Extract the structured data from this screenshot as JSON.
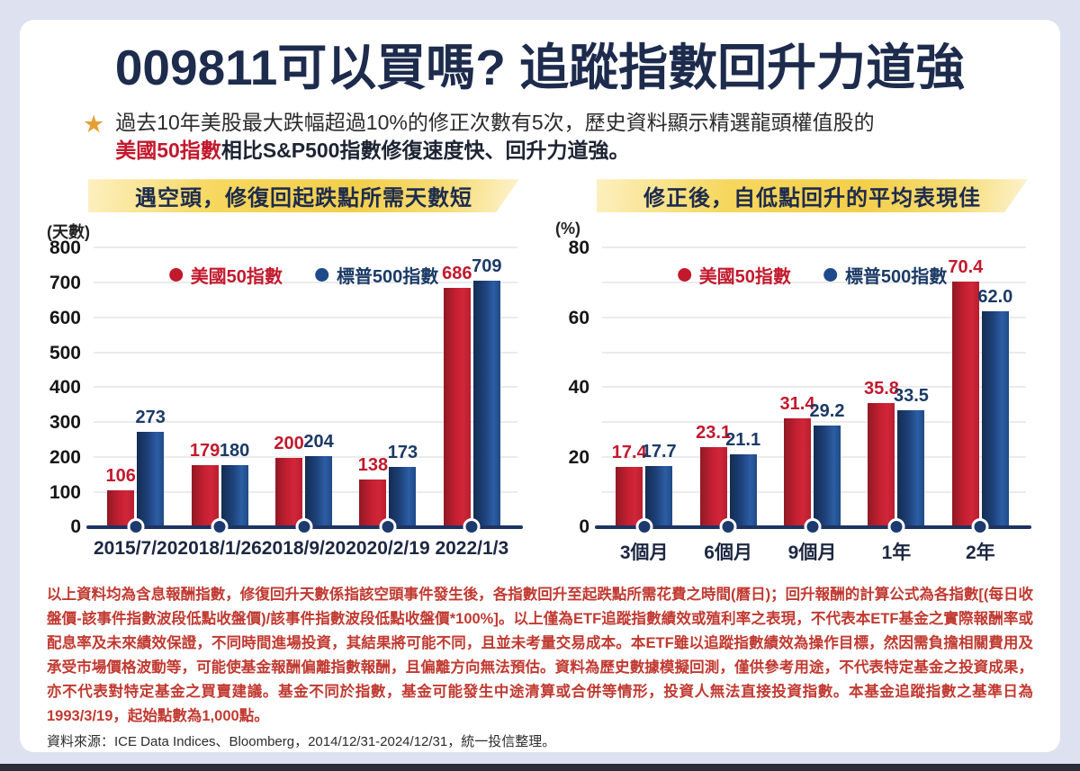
{
  "header": {
    "title": "009811可以買嗎? 追蹤指數回升力道強"
  },
  "intro": {
    "line1": "過去10年美股最大跌幅超過10%的修正次數有5次，歷史資料顯示精選龍頭權值股的",
    "line2_highlight": "美國50指數",
    "line2_rest": "相比S&P500指數修復速度快、回升力道強。"
  },
  "colors": {
    "background": "#dee2f0",
    "card": "#ffffff",
    "title_navy": "#1d2b4d",
    "red": "#c2192d",
    "navy": "#1b3a66",
    "banner_gold": "#f3cf4b",
    "star_gold": "#e59f35"
  },
  "chart_data": [
    {
      "type": "bar",
      "title": "遇空頭，修復回起跌點所需天數短",
      "unit_label": "(天數)",
      "categories": [
        "2015/7/20",
        "2018/1/26",
        "2018/9/20",
        "2020/2/19",
        "2022/1/3"
      ],
      "series": [
        {
          "name": "美國50指數",
          "color": "#c2192d",
          "values": [
            106,
            179,
            200,
            138,
            686
          ],
          "labels": [
            "106",
            "179",
            "200",
            "138",
            "686"
          ]
        },
        {
          "name": "標普500指數",
          "color": "#1e4a8a",
          "values": [
            273,
            180,
            204,
            173,
            709
          ],
          "labels": [
            "273",
            "180",
            "204",
            "173",
            "709"
          ]
        }
      ],
      "ylim": [
        0,
        800
      ],
      "ytick_step": 100,
      "label_step": 100,
      "grid": true,
      "legend_position": "top-center"
    },
    {
      "type": "bar",
      "title": "修正後，自低點回升的平均表現佳",
      "unit_label": "(%)",
      "categories": [
        "3個月",
        "6個月",
        "9個月",
        "1年",
        "2年"
      ],
      "series": [
        {
          "name": "美國50指數",
          "color": "#c2192d",
          "values": [
            17.4,
            23.1,
            31.4,
            35.8,
            70.4
          ],
          "labels": [
            "17.4",
            "23.1",
            "31.4",
            "35.8",
            "70.4"
          ]
        },
        {
          "name": "標普500指數",
          "color": "#1e4a8a",
          "values": [
            17.7,
            21.1,
            29.2,
            33.5,
            62.0
          ],
          "labels": [
            "17.7",
            "21.1",
            "29.2",
            "33.5",
            "62.0"
          ]
        }
      ],
      "ylim": [
        0,
        80
      ],
      "ytick_step": 10,
      "label_step": 20,
      "grid": true,
      "legend_position": "top-center"
    }
  ],
  "footer": {
    "disclaimer": "以上資料均為含息報酬指數，修復回升天數係指該空頭事件發生後，各指數回升至起跌點所需花費之時間(曆日)；回升報酬的計算公式為各指數[(每日收盤價-該事件指數波段低點收盤價)/該事件指數波段低點收盤價*100%]。以上僅為ETF追蹤指數績效或殖利率之表現，不代表本ETF基金之實際報酬率或配息率及未來績效保證，不同時間進場投資，其結果將可能不同，且並未考量交易成本。本ETF雖以追蹤指數績效為操作目標，然因需負擔相關費用及承受市場價格波動等，可能使基金報酬偏離指數報酬，且偏離方向無法預估。資料為歷史數據模擬回測，僅供參考用途，不代表特定基金之投資成果，亦不代表對特定基金之買賣建議。基金不同於指數，基金可能發生中途清算或合併等情形，投資人無法直接投資指數。本基金追蹤指數之基準日為1993/3/19，起始點數為1,000點。",
    "source": "資料來源：ICE Data Indices、Bloomberg，2014/12/31-2024/12/31，統一投信整理。"
  }
}
